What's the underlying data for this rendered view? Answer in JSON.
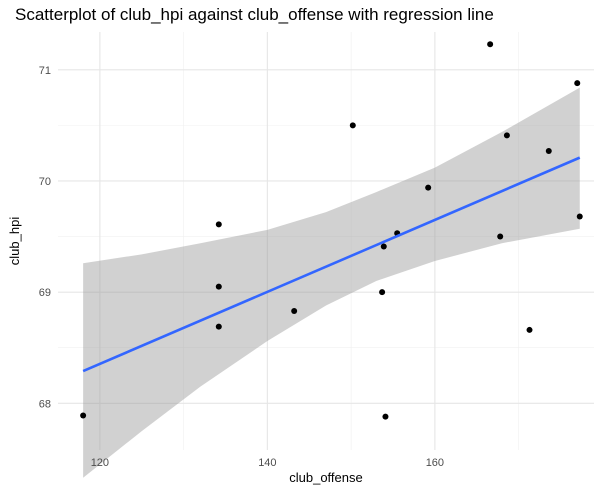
{
  "chart_data": {
    "type": "scatter",
    "title": "Scatterplot of club_hpi against club_offense with regression line",
    "xlabel": "club_offense",
    "ylabel": "club_hpi",
    "xlim": [
      115,
      179
    ],
    "ylim": [
      67.58,
      71.34
    ],
    "x_ticks": [
      120,
      140,
      160
    ],
    "y_ticks": [
      68,
      69,
      70,
      71
    ],
    "grid": true,
    "points": [
      {
        "x": 118,
        "y": 67.89
      },
      {
        "x": 134.2,
        "y": 69.61
      },
      {
        "x": 134.2,
        "y": 69.05
      },
      {
        "x": 134.2,
        "y": 68.69
      },
      {
        "x": 143.2,
        "y": 68.83
      },
      {
        "x": 150.2,
        "y": 70.5
      },
      {
        "x": 153.7,
        "y": 69.0
      },
      {
        "x": 153.9,
        "y": 69.41
      },
      {
        "x": 154.1,
        "y": 67.88
      },
      {
        "x": 155.5,
        "y": 69.53
      },
      {
        "x": 159.2,
        "y": 69.94
      },
      {
        "x": 166.6,
        "y": 71.23
      },
      {
        "x": 167.8,
        "y": 69.5
      },
      {
        "x": 168.6,
        "y": 70.41
      },
      {
        "x": 171.3,
        "y": 68.66
      },
      {
        "x": 173.6,
        "y": 70.27
      },
      {
        "x": 177.0,
        "y": 70.88
      },
      {
        "x": 177.3,
        "y": 69.68
      }
    ],
    "regression": {
      "x_start": 118,
      "y_start": 68.29,
      "x_end": 177.3,
      "y_end": 70.21,
      "line_color": "#3366FF",
      "band_color": "#999999",
      "band": [
        {
          "x": 118,
          "lo": 67.33,
          "hi": 69.26
        },
        {
          "x": 125,
          "lo": 67.75,
          "hi": 69.34
        },
        {
          "x": 132,
          "lo": 68.15,
          "hi": 69.44
        },
        {
          "x": 140,
          "lo": 68.56,
          "hi": 69.56
        },
        {
          "x": 147,
          "lo": 68.88,
          "hi": 69.72
        },
        {
          "x": 153,
          "lo": 69.1,
          "hi": 69.9
        },
        {
          "x": 160,
          "lo": 69.28,
          "hi": 70.12
        },
        {
          "x": 168,
          "lo": 69.44,
          "hi": 70.44
        },
        {
          "x": 177.3,
          "lo": 69.57,
          "hi": 70.84
        }
      ]
    },
    "point_color": "#000000"
  }
}
